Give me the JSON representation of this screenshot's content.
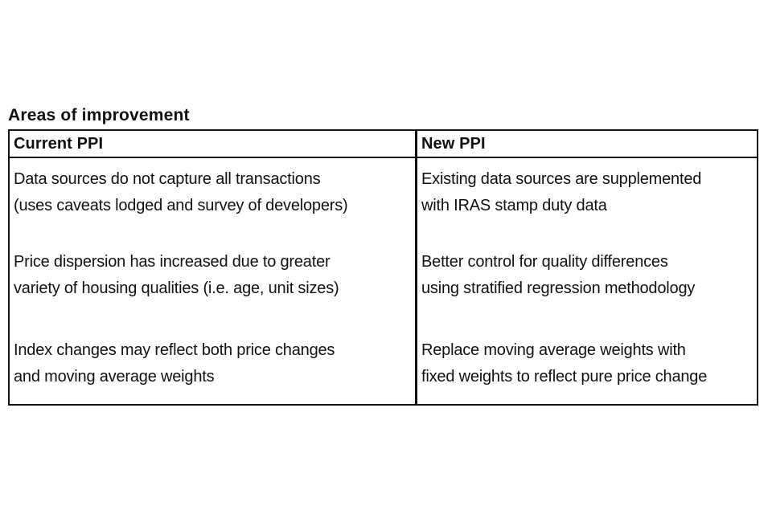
{
  "title": "Areas of improvement",
  "table": {
    "headers": [
      "Current PPI",
      "New PPI"
    ],
    "rows": [
      {
        "current": "Data sources do not capture all transactions\n(uses caveats lodged and survey of developers)",
        "new": "Existing data sources are supplemented\nwith IRAS stamp duty data"
      },
      {
        "current": "Price dispersion has increased due to greater\nvariety of housing qualities (i.e. age, unit sizes)",
        "new": "Better control for quality differences\nusing stratified regression methodology"
      },
      {
        "current": "Index changes may reflect both price changes\nand moving average weights",
        "new": "Replace moving average weights with\nfixed weights to reflect pure price change"
      }
    ]
  },
  "colors": {
    "text": "#111111",
    "border": "#111111",
    "background": "#ffffff"
  }
}
